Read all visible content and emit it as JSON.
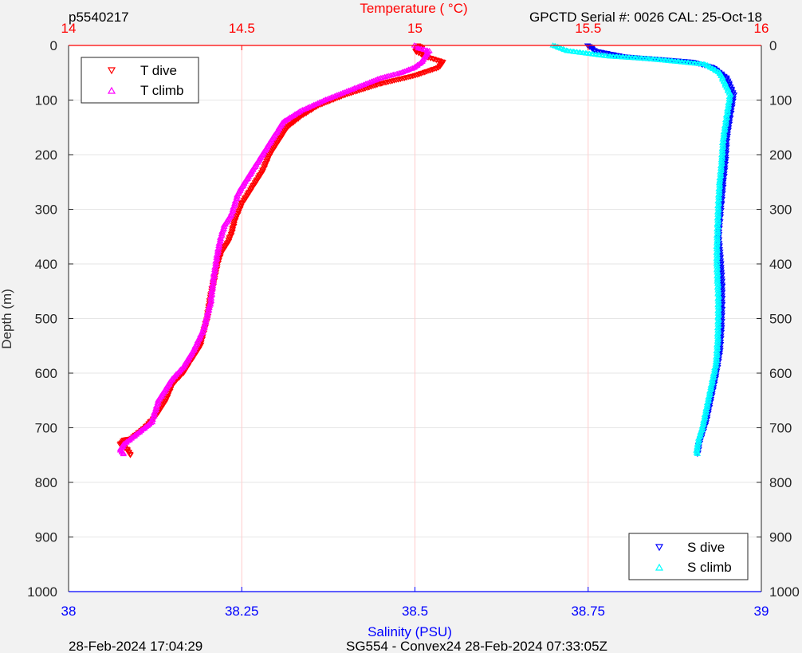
{
  "header": {
    "profile_id": "p5540217",
    "top_axis_title": "Temperature (   °C)",
    "serial_info": "GPCTD Serial #: 0026 CAL: 25-Oct-18"
  },
  "footer": {
    "plot_timestamp": "28-Feb-2024 17:04:29",
    "mission_info": "SG554 - Convex24 28-Feb-2024 07:33:05Z"
  },
  "colors": {
    "t_dive": "#ff0000",
    "t_climb": "#ff00ff",
    "s_dive": "#0000ff",
    "s_climb": "#00ffff",
    "top_axis": "#ff0000",
    "bottom_axis": "#0000ff",
    "top_grid": "#ffcccc",
    "depth_grid": "#e6e6e6"
  },
  "chart_data": {
    "type": "scatter",
    "y_axis": {
      "label": "Depth (m)",
      "range": [
        0,
        1000
      ],
      "reversed": true,
      "ticks": [
        "0",
        "100",
        "200",
        "300",
        "400",
        "500",
        "600",
        "700",
        "800",
        "900",
        "1000"
      ],
      "ticks_mirrored_right": true,
      "grid": true
    },
    "x_axis_top": {
      "label": "Temperature (   °C)",
      "range": [
        14,
        16
      ],
      "ticks": [
        "14",
        "14.5",
        "15",
        "15.5",
        "16"
      ],
      "grid": true
    },
    "x_axis_bottom": {
      "label": "Salinity (PSU)",
      "range": [
        38,
        39
      ],
      "ticks": [
        "38",
        "38.25",
        "38.5",
        "38.75",
        "39"
      ],
      "grid": false
    },
    "legends": [
      {
        "placement": "top-left",
        "entries": [
          {
            "series": "t_dive",
            "label": "T dive",
            "marker": "triangle-down"
          },
          {
            "series": "t_climb",
            "label": "T climb",
            "marker": "triangle-up"
          }
        ]
      },
      {
        "placement": "bottom-right",
        "entries": [
          {
            "series": "s_dive",
            "label": "S dive",
            "marker": "triangle-down"
          },
          {
            "series": "s_climb",
            "label": "S climb",
            "marker": "triangle-up"
          }
        ]
      }
    ],
    "series": [
      {
        "key": "t_dive",
        "name": "T dive",
        "axis": "top",
        "marker": "triangle-down",
        "x": [
          15.01,
          15.02,
          15.0,
          15.03,
          15.08,
          15.07,
          15.0,
          14.9,
          14.8,
          14.72,
          14.67,
          14.63,
          14.61,
          14.58,
          14.56,
          14.53,
          14.5,
          14.48,
          14.47,
          14.46,
          14.44,
          14.43,
          14.42,
          14.41,
          14.4,
          14.38,
          14.35,
          14.33,
          14.3,
          14.28,
          14.25,
          14.22,
          14.2,
          14.18,
          14.16,
          14.15,
          14.17,
          14.18
        ],
        "y": [
          0,
          5,
          10,
          20,
          30,
          40,
          55,
          70,
          90,
          110,
          130,
          150,
          170,
          200,
          230,
          260,
          290,
          320,
          345,
          360,
          380,
          400,
          430,
          460,
          500,
          550,
          580,
          600,
          620,
          650,
          680,
          700,
          710,
          720,
          722,
          730,
          740,
          752
        ]
      },
      {
        "key": "t_climb",
        "name": "T climb",
        "axis": "top",
        "marker": "triangle-up",
        "x": [
          15.0,
          15.01,
          15.04,
          15.03,
          15.02,
          15.0,
          14.96,
          14.9,
          14.82,
          14.74,
          14.67,
          14.62,
          14.6,
          14.57,
          14.55,
          14.53,
          14.51,
          14.49,
          14.48,
          14.47,
          14.45,
          14.44,
          14.43,
          14.42,
          14.41,
          14.39,
          14.36,
          14.33,
          14.3,
          14.28,
          14.26,
          14.25,
          14.24,
          14.22,
          14.18,
          14.16,
          14.15,
          14.16
        ],
        "y": [
          0,
          5,
          10,
          20,
          30,
          40,
          50,
          60,
          80,
          100,
          120,
          140,
          160,
          190,
          210,
          230,
          250,
          270,
          290,
          310,
          330,
          350,
          380,
          420,
          470,
          520,
          560,
          590,
          610,
          630,
          650,
          670,
          690,
          700,
          720,
          730,
          740,
          750
        ]
      },
      {
        "key": "s_dive",
        "name": "S dive",
        "axis": "bottom",
        "marker": "triangle-down",
        "x": [
          38.75,
          38.76,
          38.8,
          38.85,
          38.9,
          38.93,
          38.95,
          38.96,
          38.955,
          38.95,
          38.948,
          38.945,
          38.942,
          38.94,
          38.938,
          38.94,
          38.942,
          38.943,
          38.943,
          38.942,
          38.94,
          38.935,
          38.93,
          38.925,
          38.92,
          38.915,
          38.91,
          38.908
        ],
        "y": [
          0,
          10,
          20,
          25,
          30,
          40,
          60,
          90,
          130,
          170,
          210,
          250,
          290,
          320,
          350,
          380,
          410,
          440,
          480,
          520,
          560,
          600,
          630,
          660,
          690,
          710,
          730,
          750
        ]
      },
      {
        "key": "s_climb",
        "name": "S climb",
        "axis": "bottom",
        "marker": "triangle-up",
        "x": [
          38.7,
          38.72,
          38.78,
          38.84,
          38.88,
          38.92,
          38.94,
          38.955,
          38.95,
          38.945,
          38.943,
          38.94,
          38.938,
          38.937,
          38.936,
          38.936,
          38.937,
          38.938,
          38.938,
          38.937,
          38.935,
          38.93,
          38.925,
          38.92,
          38.915,
          38.91,
          38.907,
          38.907
        ],
        "y": [
          0,
          10,
          20,
          25,
          30,
          35,
          50,
          90,
          130,
          170,
          210,
          250,
          290,
          330,
          360,
          400,
          430,
          460,
          500,
          540,
          580,
          610,
          640,
          670,
          700,
          720,
          740,
          750
        ]
      }
    ]
  }
}
